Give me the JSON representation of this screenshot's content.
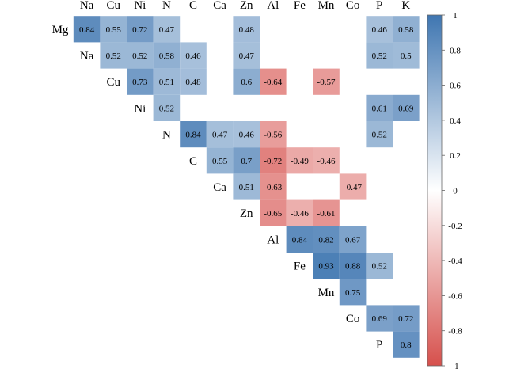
{
  "chart_data": {
    "type": "heatmap",
    "variables": [
      "Mg",
      "Na",
      "Cu",
      "Ni",
      "N",
      "C",
      "Ca",
      "Zn",
      "Al",
      "Fe",
      "Mn",
      "Co",
      "P",
      "K"
    ],
    "column_labels": [
      "Na",
      "Cu",
      "Ni",
      "N",
      "C",
      "Ca",
      "Zn",
      "Al",
      "Fe",
      "Mn",
      "Co",
      "P",
      "K"
    ],
    "row_labels": [
      "Mg",
      "Na",
      "Cu",
      "Ni",
      "N",
      "C",
      "Ca",
      "Zn",
      "Al",
      "Fe",
      "Mn",
      "Co",
      "P"
    ],
    "cells": [
      {
        "row": "Mg",
        "col": "Na",
        "value": 0.84
      },
      {
        "row": "Mg",
        "col": "Cu",
        "value": 0.55
      },
      {
        "row": "Mg",
        "col": "Ni",
        "value": 0.72
      },
      {
        "row": "Mg",
        "col": "N",
        "value": 0.47
      },
      {
        "row": "Mg",
        "col": "Zn",
        "value": 0.48
      },
      {
        "row": "Mg",
        "col": "P",
        "value": 0.46
      },
      {
        "row": "Mg",
        "col": "K",
        "value": 0.58
      },
      {
        "row": "Na",
        "col": "Cu",
        "value": 0.52
      },
      {
        "row": "Na",
        "col": "Ni",
        "value": 0.52
      },
      {
        "row": "Na",
        "col": "N",
        "value": 0.58
      },
      {
        "row": "Na",
        "col": "C",
        "value": 0.46
      },
      {
        "row": "Na",
        "col": "Zn",
        "value": 0.47
      },
      {
        "row": "Na",
        "col": "P",
        "value": 0.52
      },
      {
        "row": "Na",
        "col": "K",
        "value": 0.5
      },
      {
        "row": "Cu",
        "col": "Ni",
        "value": 0.73
      },
      {
        "row": "Cu",
        "col": "N",
        "value": 0.51
      },
      {
        "row": "Cu",
        "col": "C",
        "value": 0.48
      },
      {
        "row": "Cu",
        "col": "Zn",
        "value": 0.6
      },
      {
        "row": "Cu",
        "col": "Al",
        "value": -0.64
      },
      {
        "row": "Cu",
        "col": "Mn",
        "value": -0.57
      },
      {
        "row": "Ni",
        "col": "N",
        "value": 0.52
      },
      {
        "row": "Ni",
        "col": "P",
        "value": 0.61
      },
      {
        "row": "Ni",
        "col": "K",
        "value": 0.69
      },
      {
        "row": "N",
        "col": "C",
        "value": 0.84
      },
      {
        "row": "N",
        "col": "Ca",
        "value": 0.47
      },
      {
        "row": "N",
        "col": "Zn",
        "value": 0.46
      },
      {
        "row": "N",
        "col": "Al",
        "value": -0.56
      },
      {
        "row": "N",
        "col": "P",
        "value": 0.52
      },
      {
        "row": "C",
        "col": "Ca",
        "value": 0.55
      },
      {
        "row": "C",
        "col": "Zn",
        "value": 0.7
      },
      {
        "row": "C",
        "col": "Al",
        "value": -0.72
      },
      {
        "row": "C",
        "col": "Fe",
        "value": -0.49
      },
      {
        "row": "C",
        "col": "Mn",
        "value": -0.46
      },
      {
        "row": "Ca",
        "col": "Zn",
        "value": 0.51
      },
      {
        "row": "Ca",
        "col": "Al",
        "value": -0.63
      },
      {
        "row": "Ca",
        "col": "Co",
        "value": -0.47
      },
      {
        "row": "Zn",
        "col": "Al",
        "value": -0.65
      },
      {
        "row": "Zn",
        "col": "Fe",
        "value": -0.46
      },
      {
        "row": "Zn",
        "col": "Mn",
        "value": -0.61
      },
      {
        "row": "Al",
        "col": "Fe",
        "value": 0.84
      },
      {
        "row": "Al",
        "col": "Mn",
        "value": 0.82
      },
      {
        "row": "Al",
        "col": "Co",
        "value": 0.67
      },
      {
        "row": "Fe",
        "col": "Mn",
        "value": 0.93
      },
      {
        "row": "Fe",
        "col": "Co",
        "value": 0.88
      },
      {
        "row": "Fe",
        "col": "P",
        "value": 0.52
      },
      {
        "row": "Mn",
        "col": "Co",
        "value": 0.75
      },
      {
        "row": "Co",
        "col": "P",
        "value": 0.69
      },
      {
        "row": "Co",
        "col": "K",
        "value": 0.72
      },
      {
        "row": "P",
        "col": "K",
        "value": 0.8
      }
    ],
    "colorbar": {
      "range": [
        -1,
        1
      ],
      "ticks": [
        "1",
        "0.8",
        "0.6",
        "0.4",
        "0.2",
        "0",
        "-0.2",
        "-0.4",
        "-0.6",
        "-0.8",
        "-1"
      ],
      "colors": {
        "negative": "#d6504c",
        "zero": "#ffffff",
        "positive": "#3f76b1"
      }
    },
    "title": "",
    "xlabel": "",
    "ylabel": "",
    "grid": false,
    "legend_placement": "right"
  }
}
